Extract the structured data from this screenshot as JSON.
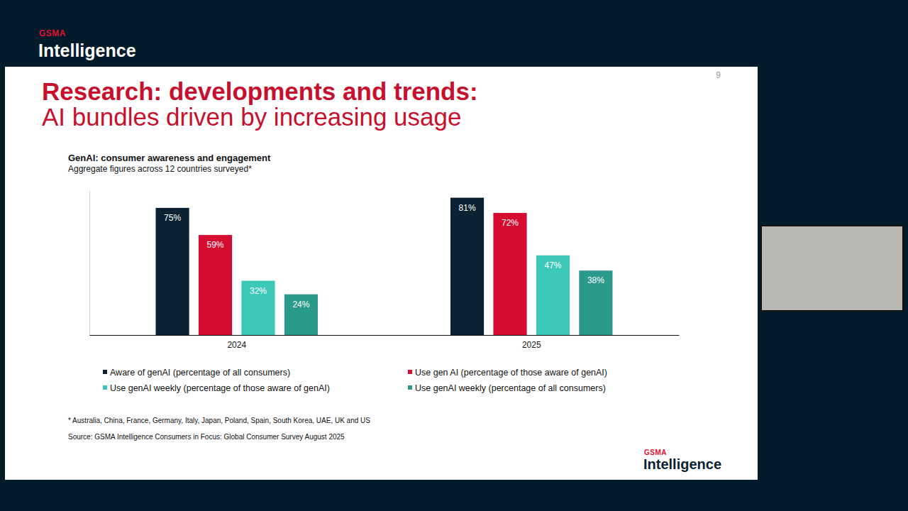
{
  "slide": {
    "brand": "GSMA",
    "brand_name": "Intelligence",
    "page_number": 9,
    "heading": "Research: developments and trends:",
    "subheading": "AI bundles driven by increasing usage",
    "footnote": "* Australia, China, France, Germany, Italy, Japan, Poland, Spain, South Korea, UAE, UK and US",
    "source": "Source: GSMA Intelligence Consumers in Focus: Global Consumer Survey August 2025"
  },
  "chart_data": {
    "type": "bar",
    "title": "GenAI: consumer awareness and engagement",
    "subtitle": "Aggregate figures across 12 countries surveyed*",
    "categories": [
      "2024",
      "2025"
    ],
    "series": [
      {
        "name": "Aware of genAI (percentage of all consumers)",
        "color": "#0b2233",
        "values": [
          75,
          81
        ],
        "value_labels": [
          "75%",
          "81%"
        ]
      },
      {
        "name": "Use gen AI (percentage of those aware of genAI)",
        "color": "#d50c2f",
        "values": [
          59,
          72
        ],
        "value_labels": [
          "59%",
          "72%"
        ]
      },
      {
        "name": "Use genAI weekly (percentage of those aware of genAI)",
        "color": "#3cc8b8",
        "values": [
          32,
          47
        ],
        "value_labels": [
          "32%",
          "47%"
        ]
      },
      {
        "name": "Use genAI weekly (percentage of all consumers)",
        "color": "#2a9a8b",
        "values": [
          24,
          38
        ],
        "value_labels": [
          "24%",
          "38%"
        ]
      }
    ],
    "ylim": [
      0,
      85
    ],
    "data_labels": true,
    "tick_labels": "x",
    "grid": false,
    "legend": "bottom"
  }
}
